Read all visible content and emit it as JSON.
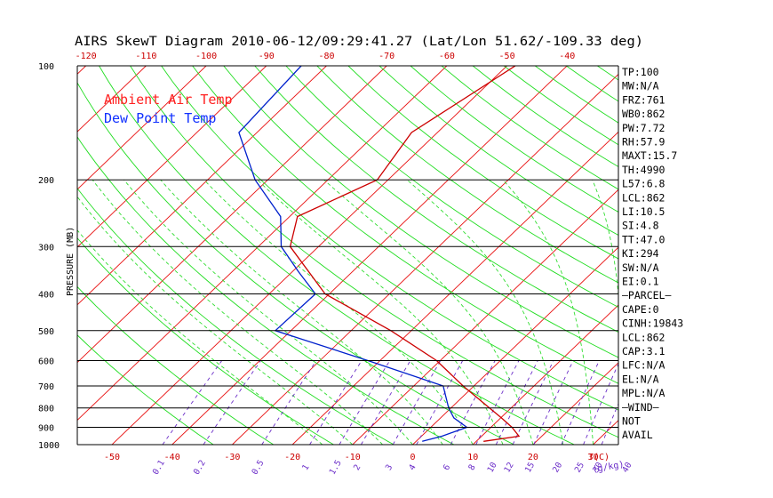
{
  "chart_data": {
    "type": "line",
    "title": "AIRS SkewT Diagram 2010-06-12/09:29:41.27 (Lat/Lon 51.62/-109.33 deg)",
    "ylabel": "PRESSURE (MB)",
    "xlabel": "T(C)",
    "mixing_ratio_unit": "(g/kg)",
    "ylim": [
      1000,
      100
    ],
    "y_scale": "log",
    "pressure_ticks": [
      100,
      200,
      300,
      400,
      500,
      600,
      700,
      800,
      900,
      1000
    ],
    "top_temp_ticks": [
      "-120",
      "-110",
      "-100",
      "-90",
      "-80",
      "-70",
      "-60",
      "-50",
      "-40"
    ],
    "bottom_temp_ticks": [
      "-50",
      "-40",
      "-30",
      "-20",
      "-10",
      "0",
      "10",
      "20",
      "30"
    ],
    "mixing_ratio_ticks": [
      "0.1",
      "0.2",
      "0.5",
      "1",
      "1.5",
      "2",
      "3",
      "4",
      "6",
      "8",
      "10",
      "12",
      "15",
      "20",
      "25",
      "30",
      "40"
    ],
    "legend": [
      {
        "name": "Ambient Air Temp",
        "color": "#ff2020"
      },
      {
        "name": "Dew Point Temp",
        "color": "#1030ff"
      }
    ],
    "series": [
      {
        "name": "Ambient Air Temp",
        "color": "#cc0000",
        "points": [
          {
            "p": 100,
            "t": -48.6
          },
          {
            "p": 150,
            "t": -54.3
          },
          {
            "p": 200,
            "t": -51.8
          },
          {
            "p": 250,
            "t": -58.7
          },
          {
            "p": 300,
            "t": -54.7
          },
          {
            "p": 400,
            "t": -40.7
          },
          {
            "p": 500,
            "t": -23.4
          },
          {
            "p": 600,
            "t": -10.6
          },
          {
            "p": 700,
            "t": -1.8
          },
          {
            "p": 800,
            "t": 6.4
          },
          {
            "p": 850,
            "t": 10.1
          },
          {
            "p": 900,
            "t": 13.5
          },
          {
            "p": 950,
            "t": 16.2
          },
          {
            "p": 980,
            "t": 11.2
          }
        ]
      },
      {
        "name": "Dew Point Temp",
        "color": "#0020cc",
        "points": [
          {
            "p": 100,
            "t": -84.2
          },
          {
            "p": 150,
            "t": -83.0
          },
          {
            "p": 200,
            "t": -72.1
          },
          {
            "p": 250,
            "t": -61.5
          },
          {
            "p": 300,
            "t": -56.2
          },
          {
            "p": 350,
            "t": -48.9
          },
          {
            "p": 400,
            "t": -42.3
          },
          {
            "p": 500,
            "t": -42.6
          },
          {
            "p": 600,
            "t": -22.0
          },
          {
            "p": 700,
            "t": -5.1
          },
          {
            "p": 800,
            "t": -0.4
          },
          {
            "p": 850,
            "t": 2.2
          },
          {
            "p": 900,
            "t": 6.0
          },
          {
            "p": 950,
            "t": 3.4
          },
          {
            "p": 980,
            "t": 1.0
          }
        ]
      }
    ],
    "indices": [
      "TP:100",
      "MW:N/A",
      "FRZ:761",
      "WB0:862",
      "PW:7.72",
      "RH:57.9",
      "MAXT:15.7",
      "TH:4990",
      "L57:6.8",
      "LCL:862",
      "LI:10.5",
      "SI:4.8",
      "TT:47.0",
      "KI:294",
      "SW:N/A",
      "EI:0.1",
      "—PARCEL—",
      "CAPE:0",
      "CINH:19843",
      "LCL:862",
      "CAP:3.1",
      "LFC:N/A",
      "EL:N/A",
      "MPL:N/A",
      "—WIND—",
      "NOT",
      "AVAIL"
    ]
  }
}
